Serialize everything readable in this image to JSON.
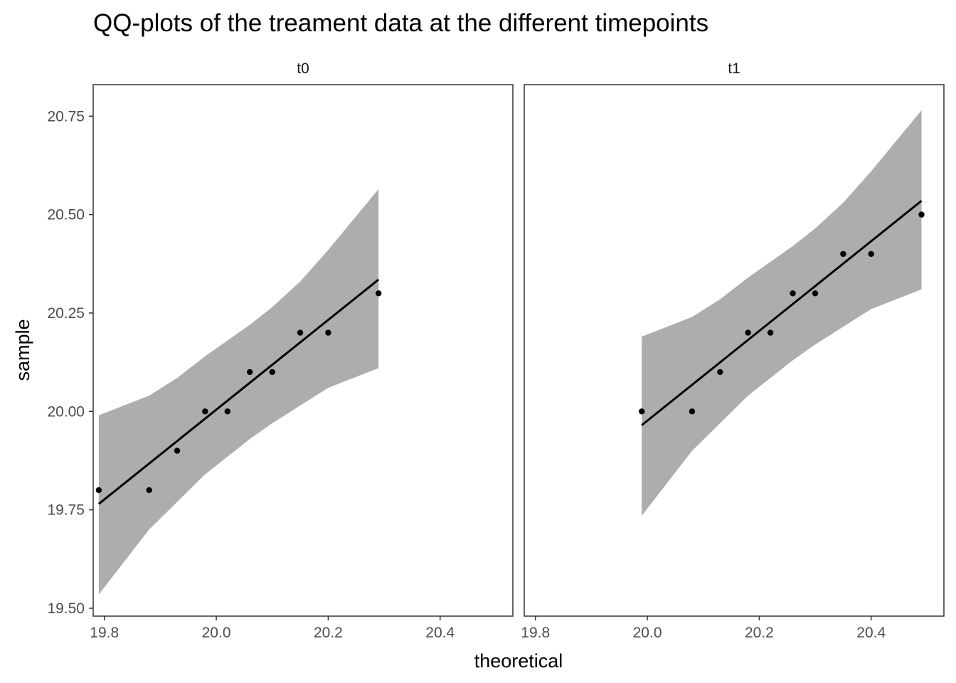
{
  "chart_data": {
    "type": "scatter",
    "title": "QQ-plots of the treament data at the different timepoints",
    "xlabel": "theoretical",
    "ylabel": "sample",
    "xlim": [
      19.78,
      20.53
    ],
    "ylim": [
      19.48,
      20.83
    ],
    "x_ticks": [
      "19.8",
      "20.0",
      "20.2",
      "20.4"
    ],
    "x_tick_values": [
      19.8,
      20.0,
      20.2,
      20.4
    ],
    "y_ticks": [
      "19.50",
      "19.75",
      "20.00",
      "20.25",
      "20.50",
      "20.75"
    ],
    "y_tick_values": [
      19.5,
      19.75,
      20.0,
      20.25,
      20.5,
      20.75
    ],
    "grid": false,
    "band_color": "#adadad",
    "line_color": "#000000",
    "point_color": "#000000",
    "facets": [
      {
        "label": "t0",
        "points": [
          {
            "x": 19.79,
            "y": 19.8
          },
          {
            "x": 19.88,
            "y": 19.8
          },
          {
            "x": 19.93,
            "y": 19.9
          },
          {
            "x": 19.98,
            "y": 20.0
          },
          {
            "x": 20.02,
            "y": 20.0
          },
          {
            "x": 20.06,
            "y": 20.1
          },
          {
            "x": 20.1,
            "y": 20.1
          },
          {
            "x": 20.15,
            "y": 20.2
          },
          {
            "x": 20.2,
            "y": 20.2
          },
          {
            "x": 20.29,
            "y": 20.3
          }
        ],
        "fit_line": {
          "x": [
            19.79,
            20.29
          ],
          "y": [
            19.765,
            20.335
          ]
        },
        "band": {
          "x": [
            19.79,
            19.88,
            19.93,
            19.98,
            20.02,
            20.06,
            20.1,
            20.15,
            20.2,
            20.29
          ],
          "lower": [
            19.535,
            19.7,
            19.77,
            19.84,
            19.885,
            19.93,
            19.97,
            20.015,
            20.06,
            20.11
          ],
          "upper": [
            19.99,
            20.04,
            20.085,
            20.14,
            20.18,
            20.22,
            20.265,
            20.33,
            20.41,
            20.565
          ]
        }
      },
      {
        "label": "t1",
        "points": [
          {
            "x": 19.99,
            "y": 20.0
          },
          {
            "x": 20.08,
            "y": 20.0
          },
          {
            "x": 20.13,
            "y": 20.1
          },
          {
            "x": 20.18,
            "y": 20.2
          },
          {
            "x": 20.22,
            "y": 20.2
          },
          {
            "x": 20.26,
            "y": 20.3
          },
          {
            "x": 20.3,
            "y": 20.3
          },
          {
            "x": 20.35,
            "y": 20.4
          },
          {
            "x": 20.4,
            "y": 20.4
          },
          {
            "x": 20.49,
            "y": 20.5
          }
        ],
        "fit_line": {
          "x": [
            19.99,
            20.49
          ],
          "y": [
            19.965,
            20.535
          ]
        },
        "band": {
          "x": [
            19.99,
            20.08,
            20.13,
            20.18,
            20.22,
            20.26,
            20.3,
            20.35,
            20.4,
            20.49
          ],
          "lower": [
            19.735,
            19.9,
            19.97,
            20.04,
            20.085,
            20.13,
            20.17,
            20.215,
            20.26,
            20.31
          ],
          "upper": [
            20.19,
            20.24,
            20.285,
            20.34,
            20.38,
            20.42,
            20.465,
            20.53,
            20.61,
            20.765
          ]
        }
      }
    ]
  }
}
